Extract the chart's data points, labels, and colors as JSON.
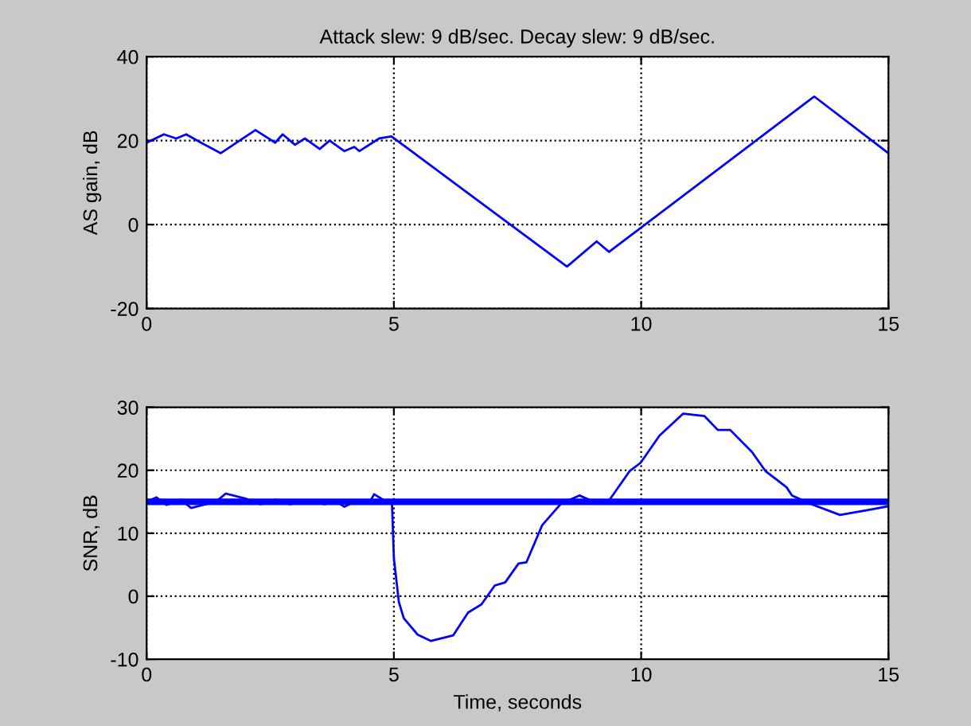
{
  "chart_data": [
    {
      "type": "line",
      "title": "Attack slew: 9 dB/sec. Decay slew: 9 dB/sec.",
      "ylabel": "AS gain, dB",
      "xlim": [
        0,
        15
      ],
      "xticks": [
        0,
        5,
        10,
        15
      ],
      "ylim": [
        -20,
        40
      ],
      "yticks": [
        -20,
        0,
        20,
        40
      ],
      "grid": true,
      "line_style": "solid",
      "series": [
        {
          "color": "#0000ff",
          "x": [
            0,
            0.35,
            0.6,
            0.8,
            1.1,
            1.5,
            2.2,
            2.6,
            2.75,
            3.0,
            3.2,
            3.5,
            3.7,
            4.0,
            4.2,
            4.3,
            4.7,
            4.95,
            8.5,
            9.1,
            9.35,
            13.5,
            15
          ],
          "values": [
            19.5,
            21.5,
            20.5,
            21.5,
            19.5,
            17,
            22.5,
            19.5,
            21.5,
            19,
            20.5,
            18,
            20,
            17.5,
            18.5,
            17.5,
            20.5,
            21,
            -10,
            -4,
            -6.5,
            30.5,
            17
          ]
        }
      ]
    },
    {
      "type": "line",
      "ylabel": "SNR, dB",
      "xlabel": "Time, seconds",
      "xlim": [
        0,
        15
      ],
      "xticks": [
        0,
        5,
        10,
        15
      ],
      "ylim": [
        -10,
        30
      ],
      "yticks": [
        -10,
        0,
        10,
        20,
        30
      ],
      "grid": true,
      "line_style": "solid",
      "ref_lines": [
        {
          "axis": "y",
          "value": 15,
          "color": "#0000ff"
        }
      ],
      "series": [
        {
          "color": "#0000ff",
          "x": [
            0,
            0.2,
            0.4,
            0.7,
            0.9,
            1.4,
            1.6,
            2.0,
            2.3,
            2.6,
            2.9,
            3.3,
            3.6,
            3.8,
            4.0,
            4.2,
            4.5,
            4.6,
            4.85,
            4.96,
            5.0,
            5.1,
            5.2,
            5.48,
            5.75,
            6.2,
            6.5,
            6.77,
            7.04,
            7.25,
            7.52,
            7.68,
            8.0,
            8.38,
            8.75,
            9.13,
            9.35,
            9.77,
            9.99,
            10.37,
            10.85,
            11.28,
            11.55,
            11.8,
            12.24,
            12.51,
            12.94,
            13.05,
            13.48,
            14.02,
            14.66,
            15
          ],
          "values": [
            15,
            15.7,
            14.5,
            15.3,
            14,
            15,
            16.3,
            15.5,
            14.6,
            15.3,
            14.6,
            15.2,
            14.6,
            15.2,
            14.2,
            15,
            14.8,
            16.2,
            15,
            15,
            6,
            -0.9,
            -3.5,
            -6.1,
            -7.1,
            -6.2,
            -2.6,
            -1.3,
            1.7,
            2.2,
            5.2,
            5.4,
            11.3,
            14.7,
            16,
            14.7,
            15.2,
            19.9,
            21.2,
            25.5,
            29,
            28.6,
            26.4,
            26.4,
            22.9,
            19.9,
            17.3,
            16,
            14.5,
            12.9,
            13.8,
            14.3
          ]
        }
      ]
    }
  ]
}
